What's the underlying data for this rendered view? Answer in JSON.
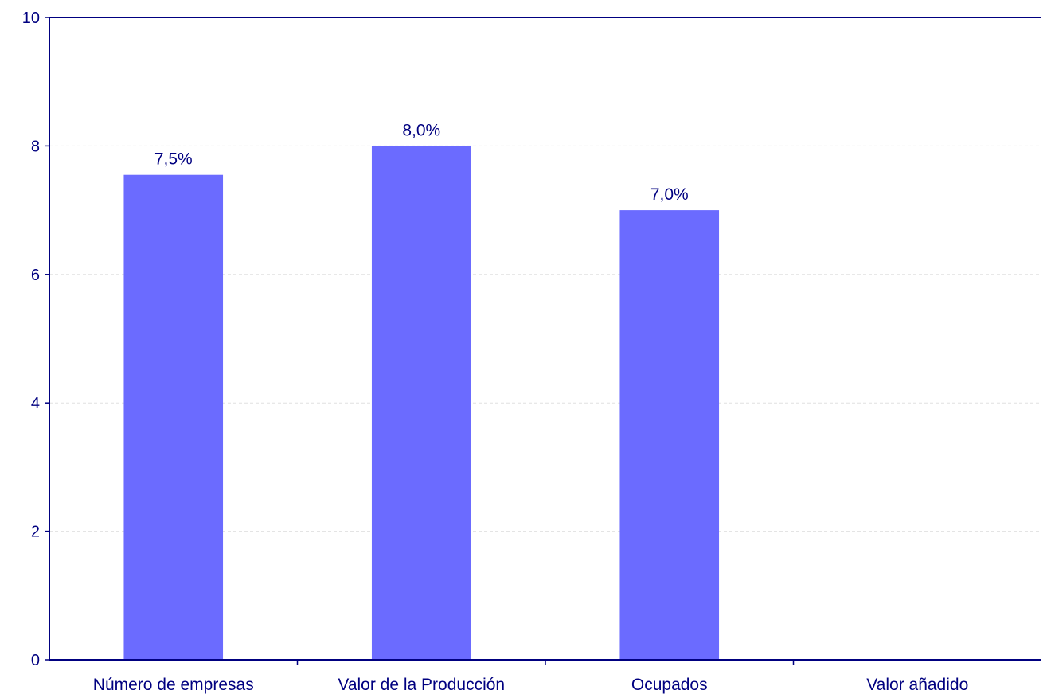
{
  "chart_data": {
    "type": "bar",
    "categories": [
      "Número de empresas",
      "Valor de la Producción",
      "Ocupados",
      "Valor añadido"
    ],
    "values": [
      7.55,
      8.0,
      7.0,
      null
    ],
    "data_labels": [
      "7,5%",
      "8,0%",
      "7,0%",
      ""
    ],
    "ylim": [
      0,
      10
    ],
    "yticks": [
      0,
      2,
      4,
      6,
      8,
      10
    ],
    "ytick_labels": [
      "0",
      "2",
      "4",
      "6",
      "8",
      "10"
    ],
    "title": "",
    "xlabel": "",
    "ylabel": "",
    "grid": true,
    "colors": {
      "bar": "#6B6BFF",
      "axis": "#000080",
      "text": "#000080",
      "grid": "#E0E0E0"
    }
  }
}
